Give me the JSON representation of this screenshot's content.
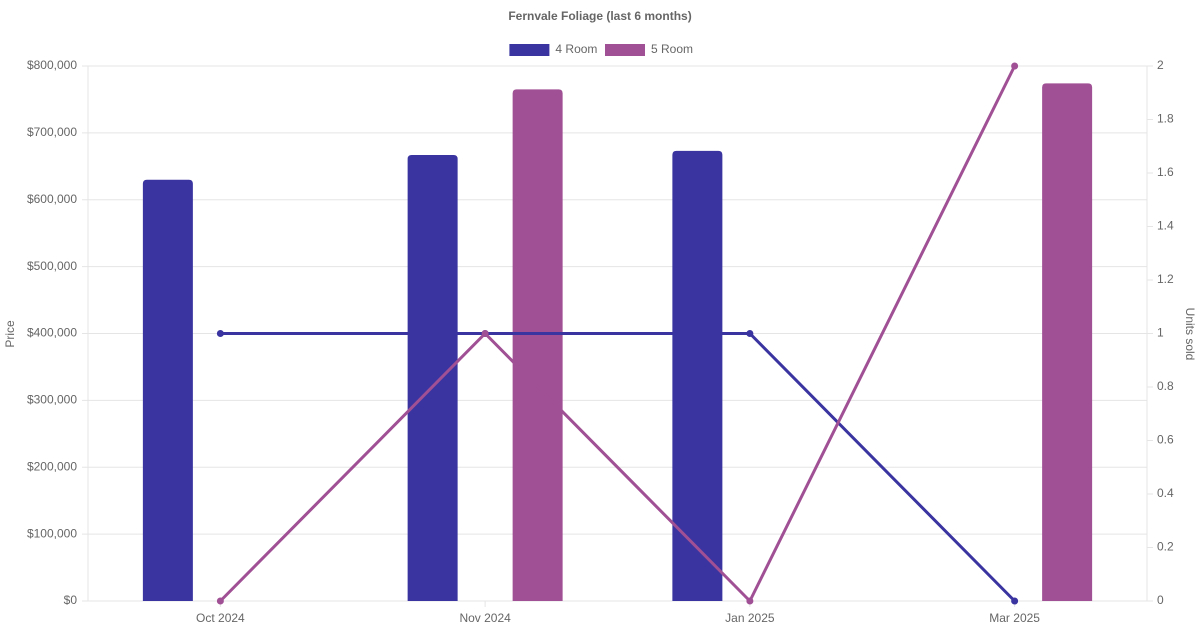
{
  "chart_data": {
    "type": "bar-line",
    "title": "Fernvale Foliage (last 6 months)",
    "ylabel": "Price",
    "y2label": "Units sold",
    "categories": [
      "Oct 2024",
      "Nov 2024",
      "Jan 2025",
      "Mar 2025"
    ],
    "series": [
      {
        "name": "4 Room",
        "color": "#3a34a0",
        "values": [
          630000,
          667000,
          673000,
          null
        ],
        "units_sold": [
          1,
          1,
          1,
          0
        ]
      },
      {
        "name": "5 Room",
        "color": "#a05094",
        "values": [
          null,
          765000,
          null,
          774000
        ],
        "units_sold": [
          0,
          1,
          0,
          2
        ]
      }
    ],
    "ylim": [
      0,
      800000
    ],
    "yticks": [
      {
        "value": 0,
        "label": "$0"
      },
      {
        "value": 100000,
        "label": "$100,000"
      },
      {
        "value": 200000,
        "label": "$200,000"
      },
      {
        "value": 300000,
        "label": "$300,000"
      },
      {
        "value": 400000,
        "label": "$400,000"
      },
      {
        "value": 500000,
        "label": "$500,000"
      },
      {
        "value": 600000,
        "label": "$600,000"
      },
      {
        "value": 700000,
        "label": "$700,000"
      },
      {
        "value": 800000,
        "label": "$800,000"
      }
    ],
    "y2lim": [
      0,
      2
    ],
    "y2ticks": [
      0,
      0.2,
      0.4,
      0.6,
      0.8,
      1,
      1.2,
      1.4,
      1.6,
      1.8,
      2
    ],
    "grid": true,
    "legend": "top"
  }
}
